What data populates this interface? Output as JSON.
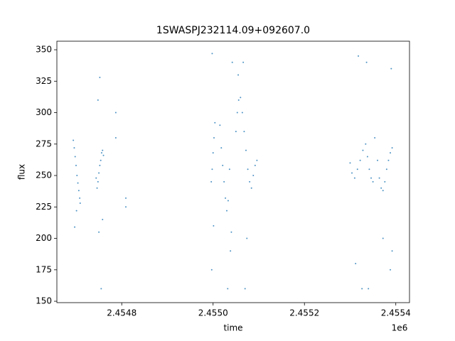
{
  "chart_data": {
    "type": "scatter",
    "title": "1SWASPJ232114.09+092607.0",
    "x_label": "time",
    "y_label": "flux",
    "x_offset_label": "1e6",
    "color": "#1f77b4",
    "xlim": [
      2454658,
      2455430
    ],
    "ylim": [
      148.9,
      356.8
    ],
    "xticks": [
      {
        "value": 2454800,
        "label": "2.4548"
      },
      {
        "value": 2455000,
        "label": "2.4550"
      },
      {
        "value": 2455200,
        "label": "2.4552"
      },
      {
        "value": 2455400,
        "label": "2.4554"
      }
    ],
    "yticks": [
      150,
      175,
      200,
      225,
      250,
      275,
      300,
      325,
      350
    ],
    "x": [
      2454694,
      2454696,
      2454698,
      2454700,
      2454702,
      2454704,
      2454706,
      2454708,
      2454709,
      2454697,
      2454701,
      2454744,
      2454746,
      2454748,
      2454750,
      2454752,
      2454754,
      2454756,
      2454758,
      2454760,
      2454748,
      2454752,
      2454755,
      2454750,
      2454758,
      2454787,
      2454787,
      2454809,
      2454809,
      2454996,
      2454998,
      2455000,
      2455002,
      2455004,
      2454998,
      2454997,
      2455001,
      2455015,
      2455018,
      2455021,
      2455024,
      2455027,
      2455030,
      2455033,
      2455036,
      2455040,
      2455038,
      2455042,
      2455032,
      2455050,
      2455053,
      2455056,
      2455060,
      2455064,
      2455068,
      2455072,
      2455076,
      2455080,
      2455084,
      2455088,
      2455092,
      2455096,
      2455066,
      2455074,
      2455070,
      2455055,
      2455300,
      2455304,
      2455310,
      2455316,
      2455322,
      2455328,
      2455326,
      2455318,
      2455334,
      2455338,
      2455342,
      2455346,
      2455350,
      2455354,
      2455360,
      2455364,
      2455368,
      2455372,
      2455376,
      2455380,
      2455384,
      2455388,
      2455392,
      2455390,
      2455392,
      2455388,
      2455336,
      2455340,
      2455312,
      2455372
    ],
    "y": [
      278,
      272,
      265,
      258,
      250,
      244,
      238,
      232,
      228,
      209,
      222,
      248,
      240,
      245,
      252,
      258,
      262,
      268,
      270,
      266,
      310,
      328,
      160,
      205,
      215,
      280,
      300,
      225,
      232,
      245,
      255,
      268,
      280,
      292,
      347,
      175,
      210,
      290,
      272,
      258,
      245,
      232,
      222,
      230,
      255,
      205,
      190,
      340,
      160,
      285,
      300,
      310,
      312,
      300,
      285,
      270,
      255,
      245,
      240,
      250,
      258,
      262,
      340,
      200,
      160,
      330,
      260,
      252,
      248,
      255,
      262,
      270,
      160,
      345,
      275,
      265,
      255,
      248,
      245,
      280,
      262,
      248,
      240,
      238,
      245,
      255,
      262,
      268,
      272,
      335,
      190,
      175,
      340,
      160,
      180,
      200
    ]
  }
}
